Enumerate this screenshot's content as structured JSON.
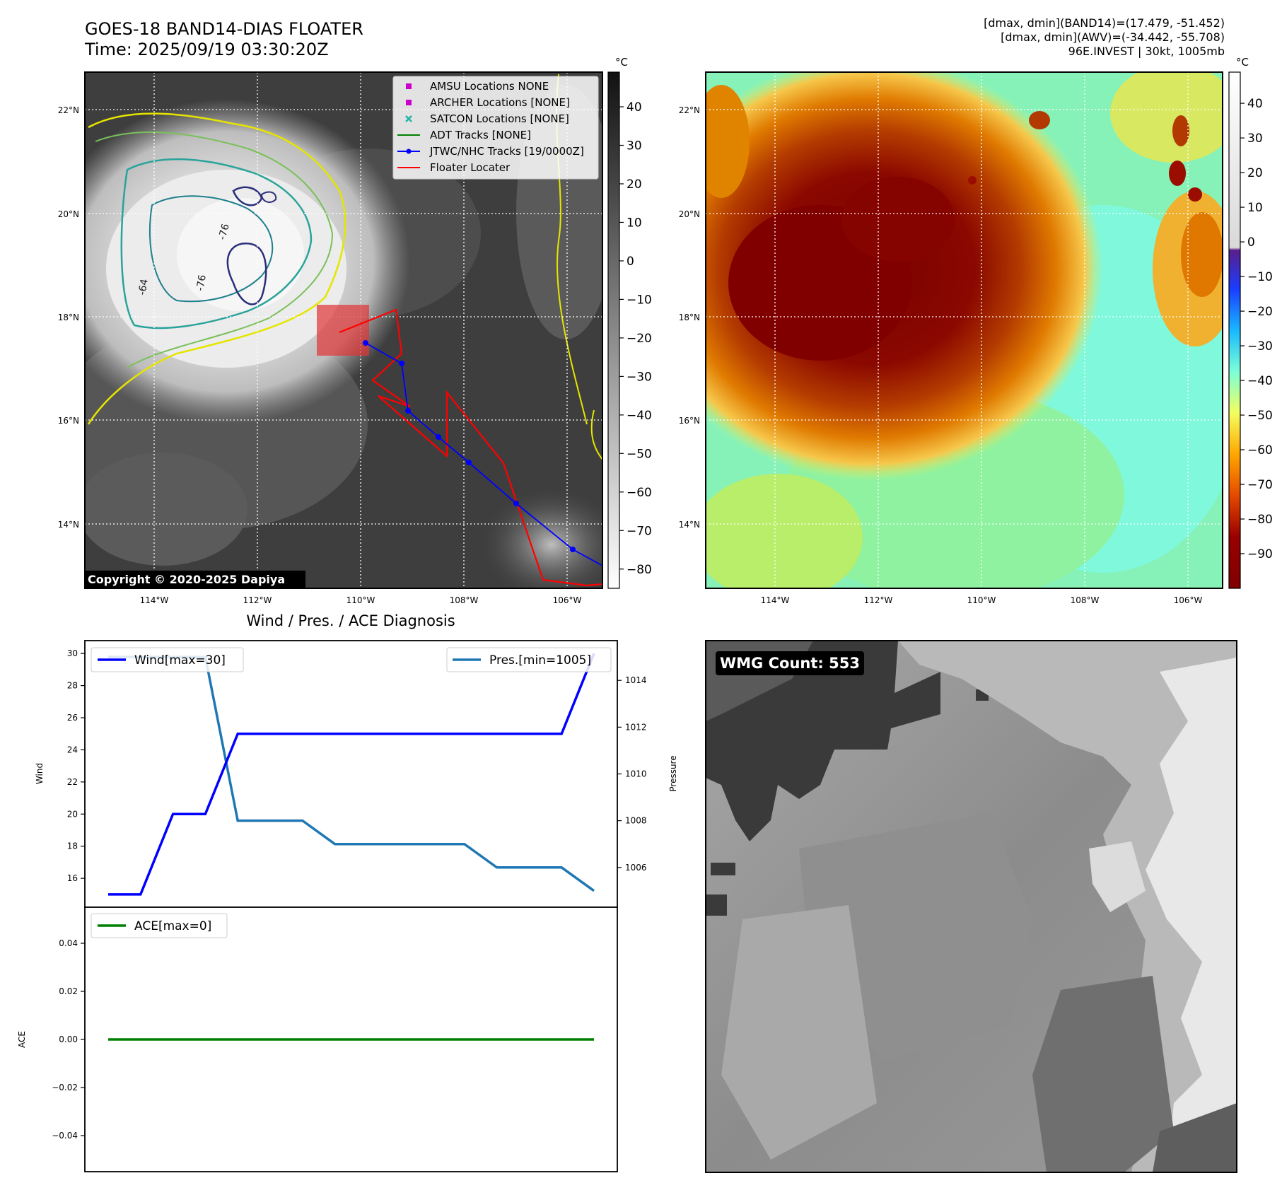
{
  "header": {
    "title": "GOES-18 BAND14-DIAS FLOATER",
    "time": "Time: 2025/09/19 03:30:20Z",
    "meta_lines": [
      "[dmax, dmin](BAND14)=(17.479, -51.452)",
      "[dmax, dmin](AWV)=(-34.442, -55.708)",
      "96E.INVEST | 30kt, 1005mb"
    ]
  },
  "maps": {
    "lat_labels": [
      "22°N",
      "20°N",
      "18°N",
      "16°N",
      "14°N"
    ],
    "lon_labels": [
      "114°W",
      "112°W",
      "110°W",
      "108°W",
      "106°W"
    ],
    "copyright": "Copyright © 2020-2025 Dapiya",
    "contour_labels": [
      "-64",
      "-76",
      "-76"
    ]
  },
  "ir_colorbar": {
    "unit": "°C",
    "ticks": [
      "40",
      "30",
      "20",
      "10",
      "0",
      "−10",
      "−20",
      "−30",
      "−40",
      "−50",
      "−60",
      "−70",
      "−80"
    ]
  },
  "awv_colorbar": {
    "unit": "°C",
    "ticks": [
      "40",
      "30",
      "20",
      "10",
      "0",
      "−10",
      "−20",
      "−30",
      "−40",
      "−50",
      "−60",
      "−70",
      "−80",
      "−90"
    ]
  },
  "legend": [
    {
      "label": "AMSU Locations NONE",
      "color": "#cc00cc",
      "marker": "square"
    },
    {
      "label": "ARCHER Locations [NONE]",
      "color": "#cc00cc",
      "marker": "square"
    },
    {
      "label": "SATCON Locations [NONE]",
      "color": "#1fb5a5",
      "marker": "x"
    },
    {
      "label": "ADT Tracks [NONE]",
      "color": "#008000",
      "marker": "line"
    },
    {
      "label": "JTWC/NHC Tracks [19/0000Z]",
      "color": "#0000ff",
      "marker": "line-dot"
    },
    {
      "label": "Floater Locater",
      "color": "#ff0000",
      "marker": "line"
    }
  ],
  "diagnosis": {
    "title": "Wind / Pres. / ACE Diagnosis",
    "wind_legend": "Wind[max=30]",
    "pres_legend": "Pres.[min=1005]",
    "ace_legend": "ACE[max=0]",
    "wind_ylabel": "Wind",
    "pres_ylabel": "Pressure",
    "ace_ylabel": "ACE",
    "wind_ticks": [
      "30",
      "28",
      "26",
      "24",
      "22",
      "20",
      "18",
      "16"
    ],
    "pres_ticks": [
      "1014",
      "1012",
      "1010",
      "1008",
      "1006"
    ],
    "ace_ticks": [
      "0.04",
      "0.02",
      "0.00",
      "−0.02",
      "−0.04"
    ]
  },
  "wmg": {
    "label": "WMG Count: 553"
  },
  "chart_data": [
    {
      "type": "line",
      "title": "Wind / Pres. / ACE Diagnosis",
      "x": [
        0,
        1,
        2,
        3,
        4,
        5,
        6,
        7,
        8,
        9,
        10,
        11,
        12,
        13,
        14,
        15
      ],
      "series": [
        {
          "name": "Wind[max=30]",
          "axis": "left",
          "color": "#0000ff",
          "values": [
            15,
            15,
            20,
            20,
            25,
            25,
            25,
            25,
            25,
            25,
            25,
            25,
            25,
            25,
            25,
            30
          ]
        },
        {
          "name": "Pres.[min=1005]",
          "axis": "right",
          "color": "#1f77b4",
          "values": [
            1015,
            1015,
            1015,
            1015,
            1008,
            1008,
            1008,
            1007,
            1007,
            1007,
            1007,
            1007,
            1006,
            1006,
            1006,
            1005
          ]
        }
      ],
      "ylabel": "Wind",
      "ylim": [
        14.2,
        30.8
      ],
      "y2label": "Pressure",
      "y2lim": [
        1004.3,
        1015.7
      ]
    },
    {
      "type": "line",
      "x": [
        0,
        1,
        2,
        3,
        4,
        5,
        6,
        7,
        8,
        9,
        10,
        11,
        12,
        13,
        14,
        15
      ],
      "series": [
        {
          "name": "ACE[max=0]",
          "color": "#008000",
          "values": [
            0,
            0,
            0,
            0,
            0,
            0,
            0,
            0,
            0,
            0,
            0,
            0,
            0,
            0,
            0,
            0
          ]
        }
      ],
      "ylabel": "ACE",
      "ylim": [
        -0.055,
        0.055
      ]
    }
  ]
}
